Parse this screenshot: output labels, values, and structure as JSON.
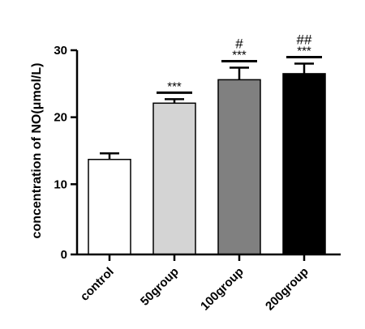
{
  "chart_data": {
    "type": "bar",
    "title": "",
    "xlabel": "",
    "ylabel": "concentration of NO(μmol/L)",
    "ylim": [
      0,
      30
    ],
    "yticks": [
      0,
      10,
      20,
      30
    ],
    "categories": [
      "control",
      "50group",
      "100group",
      "200group"
    ],
    "values": [
      13.7,
      22.1,
      25.6,
      26.5
    ],
    "errors": [
      0.9,
      0.6,
      1.8,
      1.5
    ],
    "colors": [
      "#ffffff",
      "#d4d4d4",
      "#808080",
      "#000000"
    ],
    "annotations": [
      {
        "category": "50group",
        "lines": [
          "***"
        ]
      },
      {
        "category": "100group",
        "lines": [
          "#",
          "***"
        ]
      },
      {
        "category": "200group",
        "lines": [
          "##",
          "***"
        ]
      }
    ],
    "grid": false,
    "legend": "none"
  }
}
